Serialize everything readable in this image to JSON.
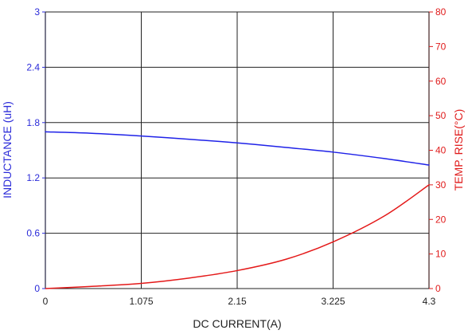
{
  "chart_data": {
    "type": "line",
    "title": "",
    "xlabel": "DC CURRENT(A)",
    "ylabel_left": "INDUCTANCE (uH)",
    "ylabel_right": "TEMP. RISE(°C)",
    "xlim": [
      0,
      4.3
    ],
    "ylim_left": [
      0,
      3
    ],
    "ylim_right": [
      0,
      80
    ],
    "x_ticks": [
      "0",
      "1.075",
      "2.15",
      "3.225",
      "4.3"
    ],
    "y_left_ticks": [
      "0",
      "0.6",
      "1.2",
      "1.8",
      "2.4",
      "3"
    ],
    "y_right_ticks": [
      "0",
      "10",
      "20",
      "30",
      "40",
      "50",
      "60",
      "70",
      "80"
    ],
    "grid": true,
    "series": [
      {
        "axis": "left",
        "color": "#1f22e8",
        "x": [
          0,
          0.5,
          1.075,
          1.6,
          2.15,
          2.7,
          3.225,
          3.8,
          4.3
        ],
        "y": [
          1.7,
          1.685,
          1.655,
          1.62,
          1.58,
          1.53,
          1.48,
          1.41,
          1.34
        ]
      },
      {
        "axis": "right",
        "color": "#e41919",
        "x": [
          0,
          0.5,
          1.075,
          1.6,
          2.15,
          2.7,
          3.225,
          3.8,
          4.3
        ],
        "y": [
          0,
          0.6,
          1.5,
          3.0,
          5.2,
          8.5,
          13.5,
          21.0,
          30.0
        ]
      }
    ]
  }
}
